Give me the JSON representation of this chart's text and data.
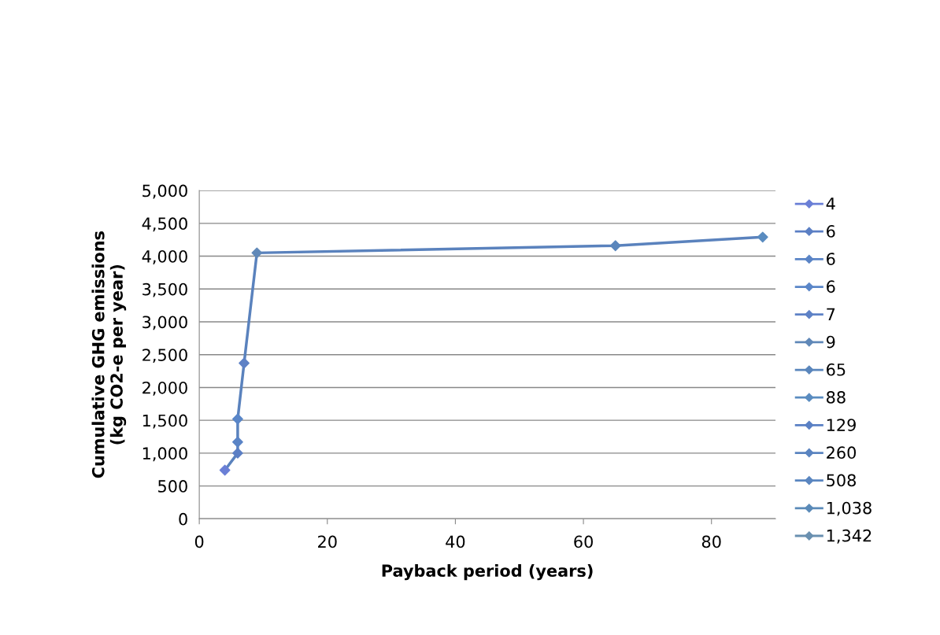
{
  "chart_data": {
    "type": "line",
    "xlabel": "Payback period (years)",
    "ylabel": "Cumulative GHG emissions\n(kg CO2-e per year)",
    "xlim": [
      0,
      90
    ],
    "xticks": [
      0,
      20,
      40,
      60,
      80
    ],
    "ylim": [
      0,
      5000
    ],
    "yticks": [
      {
        "value": 0,
        "label": "0"
      },
      {
        "value": 500,
        "label": "500"
      },
      {
        "value": 1000,
        "label": "1,000"
      },
      {
        "value": 1500,
        "label": "1,500"
      },
      {
        "value": 2000,
        "label": "2,000"
      },
      {
        "value": 2500,
        "label": "2,500"
      },
      {
        "value": 3000,
        "label": "3,000"
      },
      {
        "value": 3500,
        "label": "3,500"
      },
      {
        "value": 4000,
        "label": "4,000"
      },
      {
        "value": 4500,
        "label": "4,500"
      },
      {
        "value": 5000,
        "label": "5,000"
      }
    ],
    "grid": "y",
    "legend": "right",
    "marker": "diamond",
    "line_style": "solid",
    "series": [
      {
        "color": "#5a82bd",
        "marker": "none",
        "x": [
          4,
          6,
          6,
          6,
          7,
          9,
          65,
          88
        ],
        "values": [
          740,
          1000,
          1170,
          1520,
          2370,
          4050,
          4160,
          4290
        ]
      },
      {
        "type": "scatter",
        "name": "4",
        "color": "#6a7fd6",
        "x": [
          4
        ],
        "values": [
          740
        ]
      },
      {
        "type": "scatter",
        "name": "6",
        "color": "#5b7fc4",
        "x": [
          6
        ],
        "values": [
          1000
        ]
      },
      {
        "type": "scatter",
        "name": "6",
        "color": "#5a84c6",
        "x": [
          6
        ],
        "values": [
          1170
        ]
      },
      {
        "type": "scatter",
        "name": "6",
        "color": "#5a86c8",
        "x": [
          6
        ],
        "values": [
          1520
        ]
      },
      {
        "type": "scatter",
        "name": "7",
        "color": "#5e82c6",
        "x": [
          7
        ],
        "values": [
          2370
        ]
      },
      {
        "type": "scatter",
        "name": "9",
        "color": "#6088b8",
        "x": [
          9
        ],
        "values": [
          4050
        ]
      },
      {
        "type": "scatter",
        "name": "65",
        "color": "#5a86bc",
        "x": [
          65
        ],
        "values": [
          4160
        ]
      },
      {
        "type": "scatter",
        "name": "88",
        "color": "#5a8cc0",
        "x": [
          88
        ],
        "values": [
          4290
        ]
      },
      {
        "type": "scatter",
        "name": "129",
        "color": "#5a80c4",
        "x": [
          null
        ],
        "values": [
          null
        ]
      },
      {
        "type": "scatter",
        "name": "260",
        "color": "#5a84c0",
        "x": [
          null
        ],
        "values": [
          null
        ]
      },
      {
        "type": "scatter",
        "name": "508",
        "color": "#5a86c0",
        "x": [
          null
        ],
        "values": [
          null
        ]
      },
      {
        "type": "scatter",
        "name": "1,038",
        "color": "#5a8ab8",
        "x": [
          null
        ],
        "values": [
          null
        ]
      },
      {
        "type": "scatter",
        "name": "1,342",
        "color": "#6a90b0",
        "x": [
          null
        ],
        "values": [
          null
        ]
      }
    ]
  }
}
